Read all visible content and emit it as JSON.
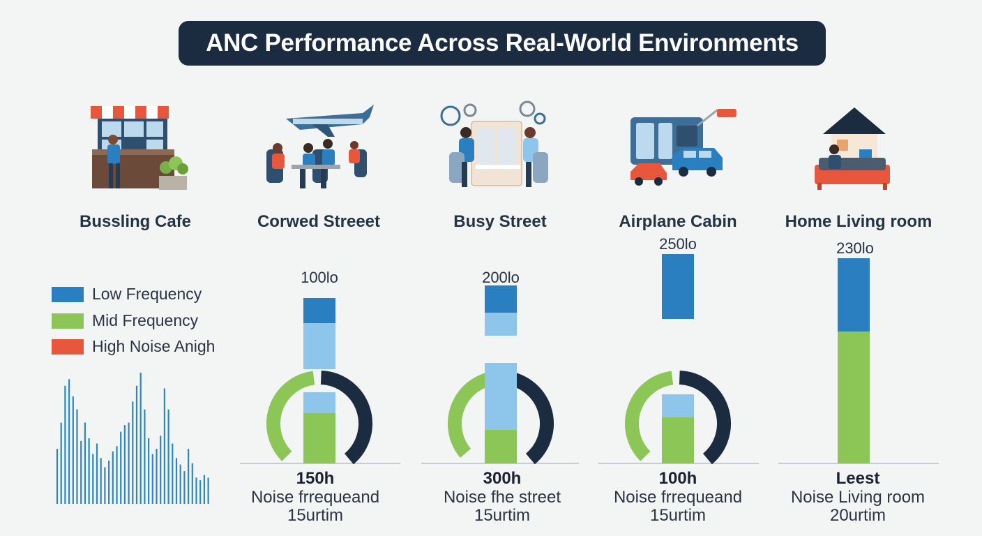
{
  "title": "ANC Performance Across Real-World Environments",
  "colors": {
    "low": "#2a7fc1",
    "low_light": "#8ec5ea",
    "mid": "#8cc657",
    "high": "#e8573c",
    "dark": "#1b2c40",
    "spectrum": "#2a87c4"
  },
  "legend": [
    {
      "label": "Low Frequency",
      "color": "#2a7fc1"
    },
    {
      "label": "Mid Frequency",
      "color": "#8cc657"
    },
    {
      "label": "High Noise Anigh",
      "color": "#e8573c"
    }
  ],
  "environments": [
    {
      "name": "Bussling Cafe",
      "icon": "cafe-icon"
    },
    {
      "name": "Corwed Streeet",
      "icon": "airplane-seats-icon"
    },
    {
      "name": "Busy Street",
      "icon": "office-meeting-icon"
    },
    {
      "name": "Airplane Cabin",
      "icon": "train-cars-icon"
    },
    {
      "name": "Home Living room",
      "icon": "house-icon"
    }
  ],
  "chart_data": {
    "type": "bar",
    "categories": [
      "Corwed Streeet",
      "Busy Street",
      "Airplane Cabin",
      "Home Living room"
    ],
    "value_labels": [
      "100lo",
      "200lo",
      "250lo",
      "230lo"
    ],
    "series": [
      {
        "name": "Low Frequency",
        "values": [
          [
            0.67,
            0.79
          ],
          [
            0.72,
            0.85
          ],
          [
            0.69,
            1.0
          ],
          [
            0.63,
            0.98
          ]
        ]
      },
      {
        "name": "Mid Frequency",
        "values": [
          [
            0.0,
            0.24
          ],
          [
            0.0,
            0.16
          ],
          [
            0.0,
            0.22
          ],
          [
            0.0,
            0.63
          ]
        ]
      }
    ],
    "light_segments": [
      [
        [
          0.45,
          0.67
        ],
        [
          0.24,
          0.34
        ]
      ],
      [
        [
          0.61,
          0.72
        ],
        [
          0.16,
          0.48
        ]
      ],
      [
        [
          0.22,
          0.33
        ]
      ],
      []
    ],
    "gauges": [
      {
        "green_end_deg": 225,
        "dark_start_deg": 355
      },
      {
        "green_end_deg": 230,
        "dark_start_deg": 355
      },
      {
        "green_end_deg": 225,
        "dark_start_deg": 355
      },
      null
    ],
    "bottom": [
      {
        "value": "150h",
        "line1": "Noise frrequeand",
        "line2": "15urtim"
      },
      {
        "value": "300h",
        "line1": "Noise fhe street",
        "line2": "15urtim"
      },
      {
        "value": "100h",
        "line1": "Noise frrequeand",
        "line2": "15urtim"
      },
      {
        "value": "Leest",
        "line1": "Noise Living room",
        "line2": "20urtim"
      }
    ],
    "spectrum": [
      0.42,
      0.62,
      0.9,
      0.95,
      0.82,
      0.72,
      0.48,
      0.62,
      0.5,
      0.38,
      0.46,
      0.35,
      0.28,
      0.33,
      0.4,
      0.44,
      0.55,
      0.6,
      0.62,
      0.78,
      0.9,
      1.0,
      0.72,
      0.5,
      0.38,
      0.42,
      0.52,
      0.88,
      0.72,
      0.46,
      0.35,
      0.3,
      0.25,
      0.42,
      0.31,
      0.2,
      0.18,
      0.22,
      0.2
    ]
  }
}
